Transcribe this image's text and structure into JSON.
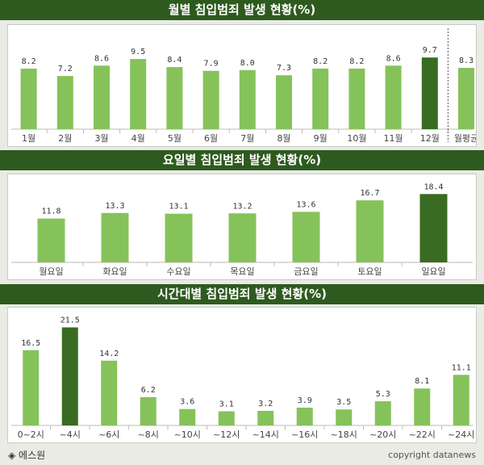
{
  "colors": {
    "normal": "#86c25a",
    "highlight": "#3a6b22",
    "header": "#2e5a1f"
  },
  "chart_data": [
    {
      "type": "bar",
      "title": "월별 침입범죄 발생 현황(%)",
      "categories": [
        "1월",
        "2월",
        "3월",
        "4월",
        "5월",
        "6월",
        "7월",
        "8월",
        "9월",
        "10월",
        "11월",
        "12월",
        "월평균"
      ],
      "values": [
        8.2,
        7.2,
        8.6,
        9.5,
        8.4,
        7.9,
        8.0,
        7.3,
        8.2,
        8.2,
        8.6,
        9.7,
        8.3
      ],
      "value_labels": [
        "8.2",
        "7.2",
        "8.6",
        "9.5",
        "8.4",
        "7.9",
        "8.0",
        "7.3",
        "8.2",
        "8.2",
        "8.6",
        "9.7",
        "8.3"
      ],
      "highlight": [
        11
      ],
      "separator_before": 12,
      "grid": false
    },
    {
      "type": "bar",
      "title": "요일별 침입범죄 발생 현황(%)",
      "categories": [
        "월요일",
        "화요일",
        "수요일",
        "목요일",
        "금요일",
        "토요일",
        "일요일"
      ],
      "values": [
        11.8,
        13.3,
        13.1,
        13.2,
        13.6,
        16.7,
        18.4
      ],
      "value_labels": [
        "11.8",
        "13.3",
        "13.1",
        "13.2",
        "13.6",
        "16.7",
        "18.4"
      ],
      "highlight": [
        6
      ],
      "grid": false
    },
    {
      "type": "bar",
      "title": "시간대별 침입범죄 발생 현황(%)",
      "categories": [
        "0~2시",
        "~4시",
        "~6시",
        "~8시",
        "~10시",
        "~12시",
        "~14시",
        "~16시",
        "~18시",
        "~20시",
        "~22시",
        "~24시"
      ],
      "values": [
        16.5,
        21.5,
        14.2,
        6.2,
        3.6,
        3.1,
        3.2,
        3.9,
        3.5,
        5.3,
        8.1,
        11.1
      ],
      "value_labels": [
        "16.5",
        "21.5",
        "14.2",
        "6.2",
        "3.6",
        "3.1",
        "3.2",
        "3.9",
        "3.5",
        "5.3",
        "8.1",
        "11.1"
      ],
      "highlight": [
        1
      ],
      "grid": false
    }
  ],
  "footer": {
    "source": "◈ 에스원",
    "copyright": "copyright datanews"
  }
}
